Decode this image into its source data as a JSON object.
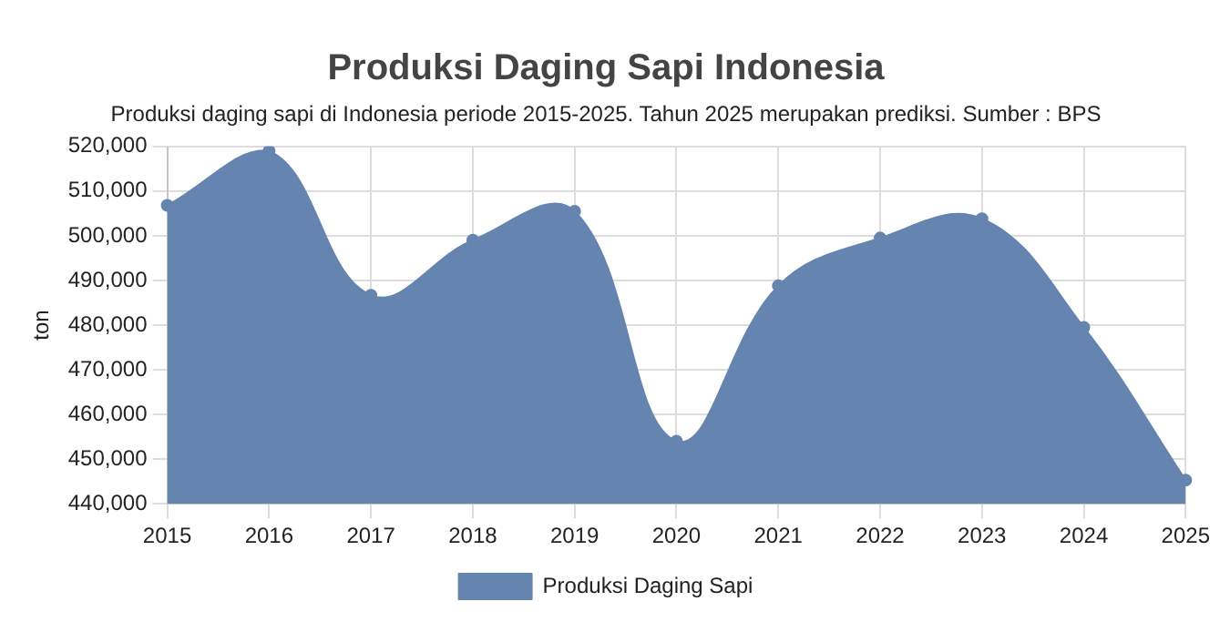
{
  "chart_data": {
    "type": "area",
    "title": "Produksi Daging Sapi Indonesia",
    "subtitle": "Produksi daging sapi di Indonesia periode 2015-2025. Tahun 2025 merupakan prediksi. Sumber : BPS",
    "ylabel": "ton",
    "categories": [
      "2015",
      "2016",
      "2017",
      "2018",
      "2019",
      "2020",
      "2021",
      "2022",
      "2023",
      "2024",
      "2025"
    ],
    "series": [
      {
        "name": "Produksi Daging Sapi",
        "color": "#6584b0",
        "values": [
          506800,
          519000,
          486700,
          499000,
          505500,
          454000,
          488800,
          499500,
          503800,
          479500,
          445300
        ]
      }
    ],
    "ylim": [
      440000,
      520000
    ],
    "yticks": [
      {
        "value": 440000,
        "label": "440,000"
      },
      {
        "value": 450000,
        "label": "450,000"
      },
      {
        "value": 460000,
        "label": "460,000"
      },
      {
        "value": 470000,
        "label": "470,000"
      },
      {
        "value": 480000,
        "label": "480,000"
      },
      {
        "value": 490000,
        "label": "490,000"
      },
      {
        "value": 500000,
        "label": "500,000"
      },
      {
        "value": 510000,
        "label": "510,000"
      },
      {
        "value": 520000,
        "label": "520,000"
      }
    ],
    "grid": true,
    "legend": "bottom",
    "marker": "circle"
  }
}
